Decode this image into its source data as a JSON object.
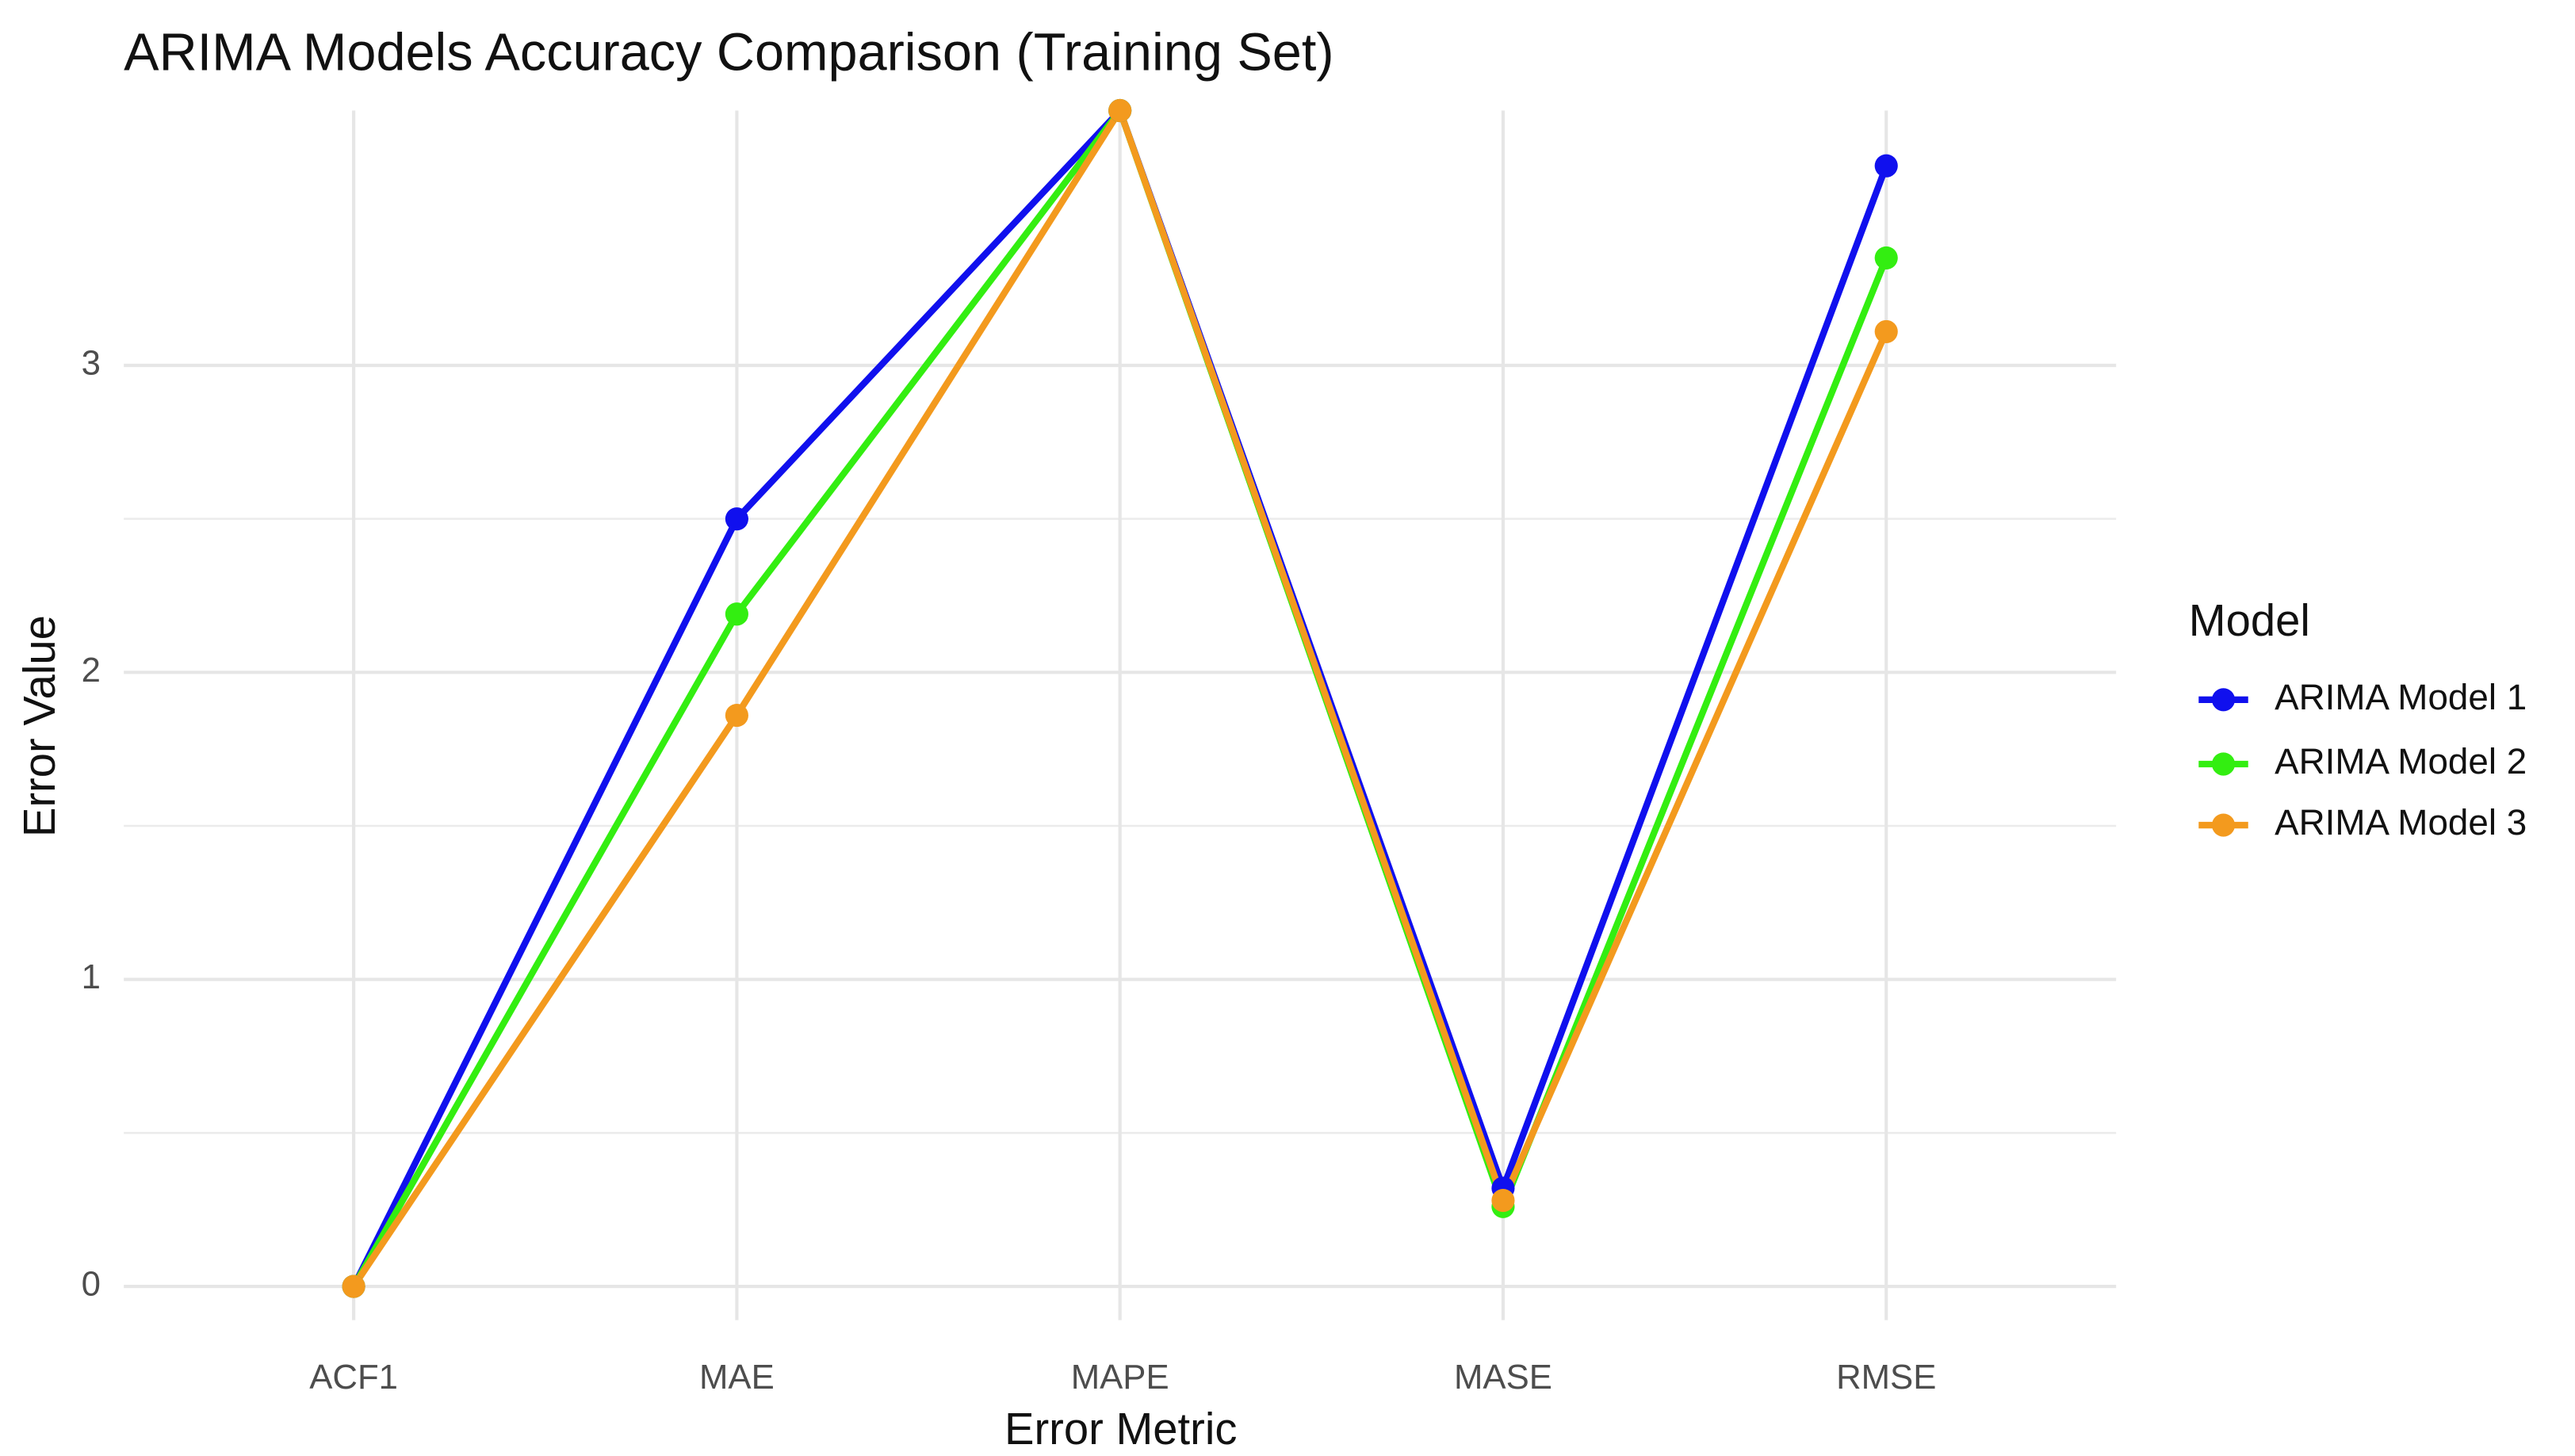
{
  "chart_data": {
    "type": "line",
    "title": "ARIMA Models Accuracy Comparison (Training Set)",
    "x_label": "Error Metric",
    "y_label": "Error Value",
    "legend_title": "Model",
    "categories": [
      "ACF1",
      "MAE",
      "MAPE",
      "MASE",
      "RMSE"
    ],
    "series": [
      {
        "name": "ARIMA Model 1",
        "color": "#1010ee",
        "values": [
          0,
          2.5,
          3.83,
          0.32,
          3.65
        ]
      },
      {
        "name": "ARIMA Model 2",
        "color": "#33ee11",
        "values": [
          0,
          2.19,
          3.83,
          0.26,
          3.35
        ]
      },
      {
        "name": "ARIMA Model 3",
        "color": "#f39a1e",
        "values": [
          0,
          1.86,
          3.83,
          0.28,
          3.11
        ]
      }
    ],
    "ylim": [
      -0.11,
      3.83
    ],
    "yticks": [
      0,
      1,
      2,
      3
    ],
    "grid": true,
    "legend_position": "right"
  }
}
